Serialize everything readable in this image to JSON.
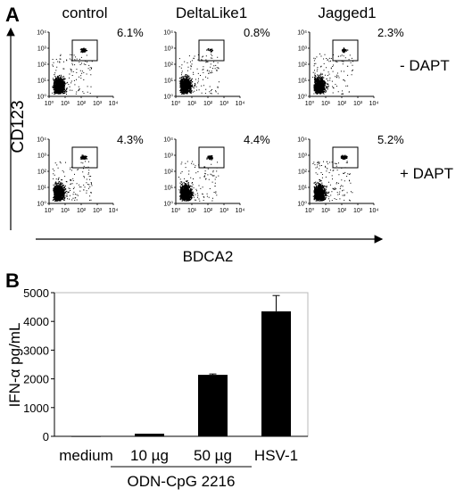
{
  "panel_a": {
    "label": "A",
    "columns": [
      "control",
      "DeltaLike1",
      "Jagged1"
    ],
    "rows": [
      "- DAPT",
      "+ DAPT"
    ],
    "y_axis_label": "CD123",
    "x_axis_label": "BDCA2",
    "tick_labels": [
      "10⁰",
      "10¹",
      "10²",
      "10³",
      "10⁴"
    ],
    "plots": [
      {
        "column": "control",
        "row": "- DAPT",
        "gate_percent": "6.1%",
        "fraction": 0.061
      },
      {
        "column": "DeltaLike1",
        "row": "- DAPT",
        "gate_percent": "0.8%",
        "fraction": 0.008
      },
      {
        "column": "Jagged1",
        "row": "- DAPT",
        "gate_percent": "2.3%",
        "fraction": 0.023
      },
      {
        "column": "control",
        "row": "+ DAPT",
        "gate_percent": "4.3%",
        "fraction": 0.043
      },
      {
        "column": "DeltaLike1",
        "row": "+ DAPT",
        "gate_percent": "4.4%",
        "fraction": 0.044
      },
      {
        "column": "Jagged1",
        "row": "+ DAPT",
        "gate_percent": "5.2%",
        "fraction": 0.052
      }
    ]
  },
  "panel_b": {
    "label": "B",
    "group_label": "ODN-CpG 2216"
  },
  "chart_data": {
    "type": "bar",
    "categories": [
      "medium",
      "10 µg",
      "50 µg",
      "HSV-1"
    ],
    "values": [
      5,
      90,
      2140,
      4350
    ],
    "errors": [
      0,
      0,
      30,
      550
    ],
    "title": "",
    "xlabel": "",
    "ylabel": "IFN-α pg/mL",
    "ylim": [
      0,
      5000
    ],
    "yticks": [
      0,
      1000,
      2000,
      3000,
      4000,
      5000
    ],
    "grid": false,
    "bar_color": "#000000"
  }
}
